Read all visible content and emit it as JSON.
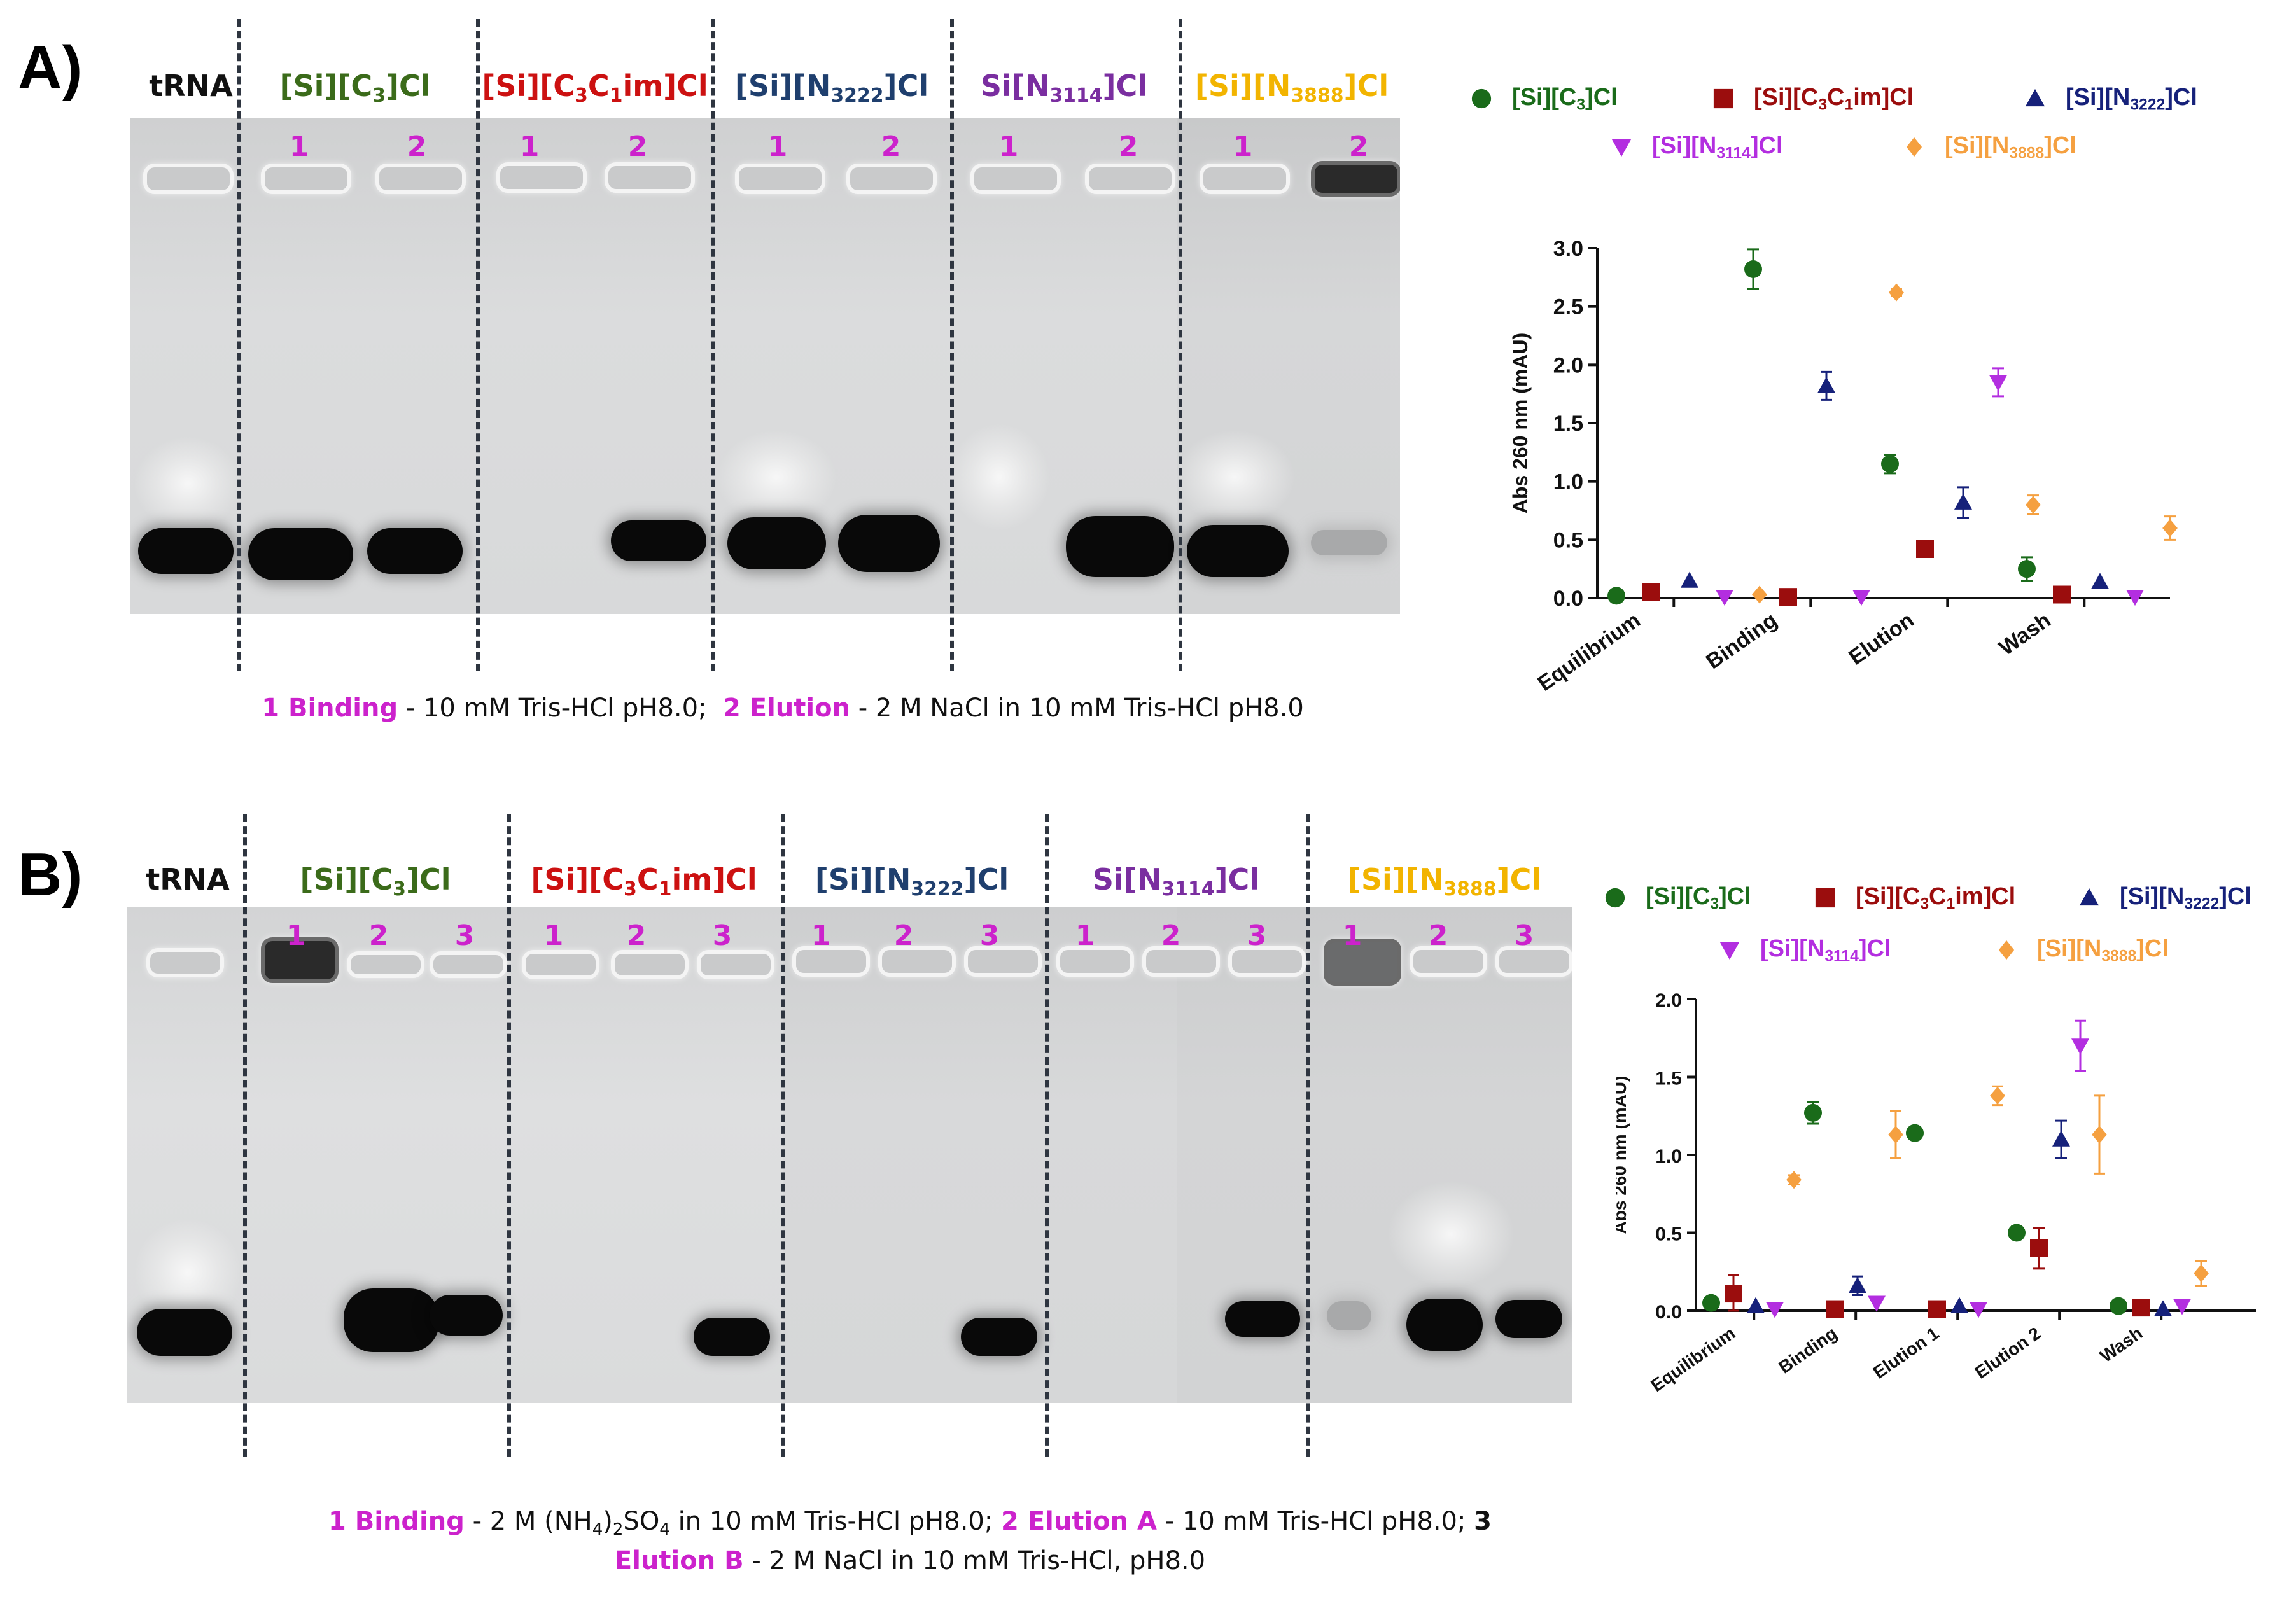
{
  "panel_a": {
    "label": "A)",
    "lanes": [
      {
        "name_main": "tRNA",
        "name_sub": "",
        "name_tail": "",
        "color": "#111111",
        "numbers": []
      },
      {
        "name_main": "[Si][C",
        "name_sub": "3",
        "name_tail": "]Cl",
        "color": "#3b6b1a",
        "numbers": [
          "1",
          "2"
        ]
      },
      {
        "name_main": "[Si][C",
        "name_sub": "3",
        "name_mid": "C",
        "name_sub2": "1",
        "name_tail": "im]Cl",
        "color": "#cc1111",
        "numbers": [
          "1",
          "2"
        ]
      },
      {
        "name_main": "[Si][N",
        "name_sub": "3222",
        "name_tail": "]Cl",
        "color": "#1f3f6e",
        "numbers": [
          "1",
          "2"
        ]
      },
      {
        "name_main": "Si[N",
        "name_sub": "3114",
        "name_tail": "]Cl",
        "color": "#7a2ea0",
        "numbers": [
          "1",
          "2"
        ]
      },
      {
        "name_main": "[Si][N",
        "name_sub": "3888",
        "name_tail": "]Cl",
        "color": "#f2b400",
        "numbers": [
          "1",
          "2"
        ]
      }
    ],
    "caption": {
      "n1": "1 Binding",
      "t1": " - 10 mM Tris-HCl pH8.0;  ",
      "n2": "2 Elution",
      "t2": " - 2 M NaCl in 10 mM Tris-HCl pH8.0"
    }
  },
  "panel_b": {
    "label": "B)",
    "lanes": [
      {
        "name_main": "tRNA",
        "name_sub": "",
        "name_tail": "",
        "color": "#111111",
        "numbers": []
      },
      {
        "name_main": "[Si][C",
        "name_sub": "3",
        "name_tail": "]Cl",
        "color": "#3b6b1a",
        "numbers": [
          "1",
          "2",
          "3"
        ]
      },
      {
        "name_main": "[Si][C",
        "name_sub": "3",
        "name_mid": "C",
        "name_sub2": "1",
        "name_tail": "im]Cl",
        "color": "#cc1111",
        "numbers": [
          "1",
          "2",
          "3"
        ]
      },
      {
        "name_main": "[Si][N",
        "name_sub": "3222",
        "name_tail": "]Cl",
        "color": "#1f3f6e",
        "numbers": [
          "1",
          "2",
          "3"
        ]
      },
      {
        "name_main": "Si[N",
        "name_sub": "3114",
        "name_tail": "]Cl",
        "color": "#7a2ea0",
        "numbers": [
          "1",
          "2",
          "3"
        ]
      },
      {
        "name_main": "[Si][N",
        "name_sub": "3888",
        "name_tail": "]Cl",
        "color": "#f2b400",
        "numbers": [
          "1",
          "2",
          "3"
        ]
      }
    ],
    "caption": {
      "n1": "1 Binding",
      "t1a": " - 2 M (NH",
      "t1b": "4",
      "t1c": ")",
      "t1d": "2",
      "t1e": "SO",
      "t1f": "4",
      "t1g": " in 10 mM Tris-HCl pH8.0; ",
      "n2": "2 Elution A",
      "t2": " - 10 mM Tris-HCl pH8.0; ",
      "n3": "3",
      "n3b": "Elution B",
      "t3": " - 2 M NaCl in 10 mM Tris-HCl, pH8.0"
    }
  },
  "legend": {
    "items": [
      {
        "main": "[Si][C",
        "sub": "3",
        "tail": "]Cl",
        "color": "#1a6b1a",
        "marker": "circle"
      },
      {
        "main": "[Si][C",
        "sub": "3",
        "mid": "C",
        "sub2": "1",
        "tail": "im]Cl",
        "color": "#9b0d0d",
        "marker": "square"
      },
      {
        "main": "[Si][N",
        "sub": "3222",
        "tail": "]Cl",
        "color": "#16217a",
        "marker": "triangle-up"
      },
      {
        "main": "[Si][N",
        "sub": "3114",
        "tail": "]Cl",
        "color": "#b32ee0",
        "marker": "triangle-down"
      },
      {
        "main": "[Si][N",
        "sub": "3888",
        "tail": "]Cl",
        "color": "#f5a040",
        "marker": "diamond"
      }
    ]
  },
  "chart_data": [
    {
      "type": "scatter",
      "title": "",
      "xlabel": "",
      "ylabel": "Abs 260 nm (mAU)",
      "categories": [
        "Equilibrium",
        "Binding",
        "Elution",
        "Wash"
      ],
      "ylim": [
        0,
        3.0
      ],
      "yticks": [
        "0.0",
        "0.5",
        "1.0",
        "1.5",
        "2.0",
        "2.5",
        "3.0"
      ],
      "series": [
        {
          "name": "[Si][C3]Cl",
          "color": "#1a6b1a",
          "marker": "circle",
          "values": [
            0.02,
            2.82,
            1.15,
            0.25
          ],
          "errors": [
            0.01,
            0.17,
            0.08,
            0.1
          ]
        },
        {
          "name": "[Si][C3C1im]Cl",
          "color": "#9b0d0d",
          "marker": "square",
          "values": [
            0.05,
            0.01,
            0.42,
            0.03
          ],
          "errors": [
            0.01,
            0.01,
            0.03,
            0.01
          ]
        },
        {
          "name": "[Si][N3222]Cl",
          "color": "#16217a",
          "marker": "triangle-up",
          "values": [
            0.15,
            1.82,
            0.82,
            0.14
          ],
          "errors": [
            0.02,
            0.12,
            0.13,
            0.02
          ]
        },
        {
          "name": "[Si][N3114]Cl",
          "color": "#b32ee0",
          "marker": "triangle-down",
          "values": [
            0.01,
            0.01,
            1.85,
            0.01
          ],
          "errors": [
            0.01,
            0.01,
            0.12,
            0.01
          ]
        },
        {
          "name": "[Si][N3888]Cl",
          "color": "#f5a040",
          "marker": "diamond",
          "values": [
            0.03,
            2.62,
            0.8,
            0.6
          ],
          "errors": [
            0.01,
            0.03,
            0.08,
            0.1
          ]
        }
      ]
    },
    {
      "type": "scatter",
      "title": "",
      "xlabel": "",
      "ylabel": "Abs 260 nm (mAU)",
      "categories": [
        "Equilibrium",
        "Binding",
        "Elution 1",
        "Elution 2",
        "Wash"
      ],
      "ylim": [
        0,
        2.0
      ],
      "yticks": [
        "0.0",
        "0.5",
        "1.0",
        "1.5",
        "2.0"
      ],
      "series": [
        {
          "name": "[Si][C3]Cl",
          "color": "#1a6b1a",
          "marker": "circle",
          "values": [
            0.05,
            1.27,
            1.14,
            0.5,
            0.03
          ],
          "errors": [
            0.01,
            0.07,
            0.02,
            0.04,
            0.01
          ]
        },
        {
          "name": "[Si][C3C1im]Cl",
          "color": "#9b0d0d",
          "marker": "square",
          "values": [
            0.11,
            0.01,
            0.01,
            0.4,
            0.02
          ],
          "errors": [
            0.12,
            0.01,
            0.01,
            0.13,
            0.01
          ]
        },
        {
          "name": "[Si][N3222]Cl",
          "color": "#16217a",
          "marker": "triangle-up",
          "values": [
            0.03,
            0.16,
            0.03,
            1.1,
            0.01
          ],
          "errors": [
            0.01,
            0.06,
            0.01,
            0.12,
            0.01
          ]
        },
        {
          "name": "[Si][N3114]Cl",
          "color": "#b32ee0",
          "marker": "triangle-down",
          "values": [
            0.01,
            0.05,
            0.01,
            1.7,
            0.03
          ],
          "errors": [
            0.01,
            0.01,
            0.01,
            0.16,
            0.01
          ]
        },
        {
          "name": "[Si][N3888]Cl",
          "color": "#f5a040",
          "marker": "diamond",
          "values": [
            0.84,
            1.13,
            1.38,
            1.13,
            0.24
          ],
          "errors": [
            0.03,
            0.15,
            0.06,
            0.25,
            0.08
          ]
        }
      ]
    }
  ]
}
